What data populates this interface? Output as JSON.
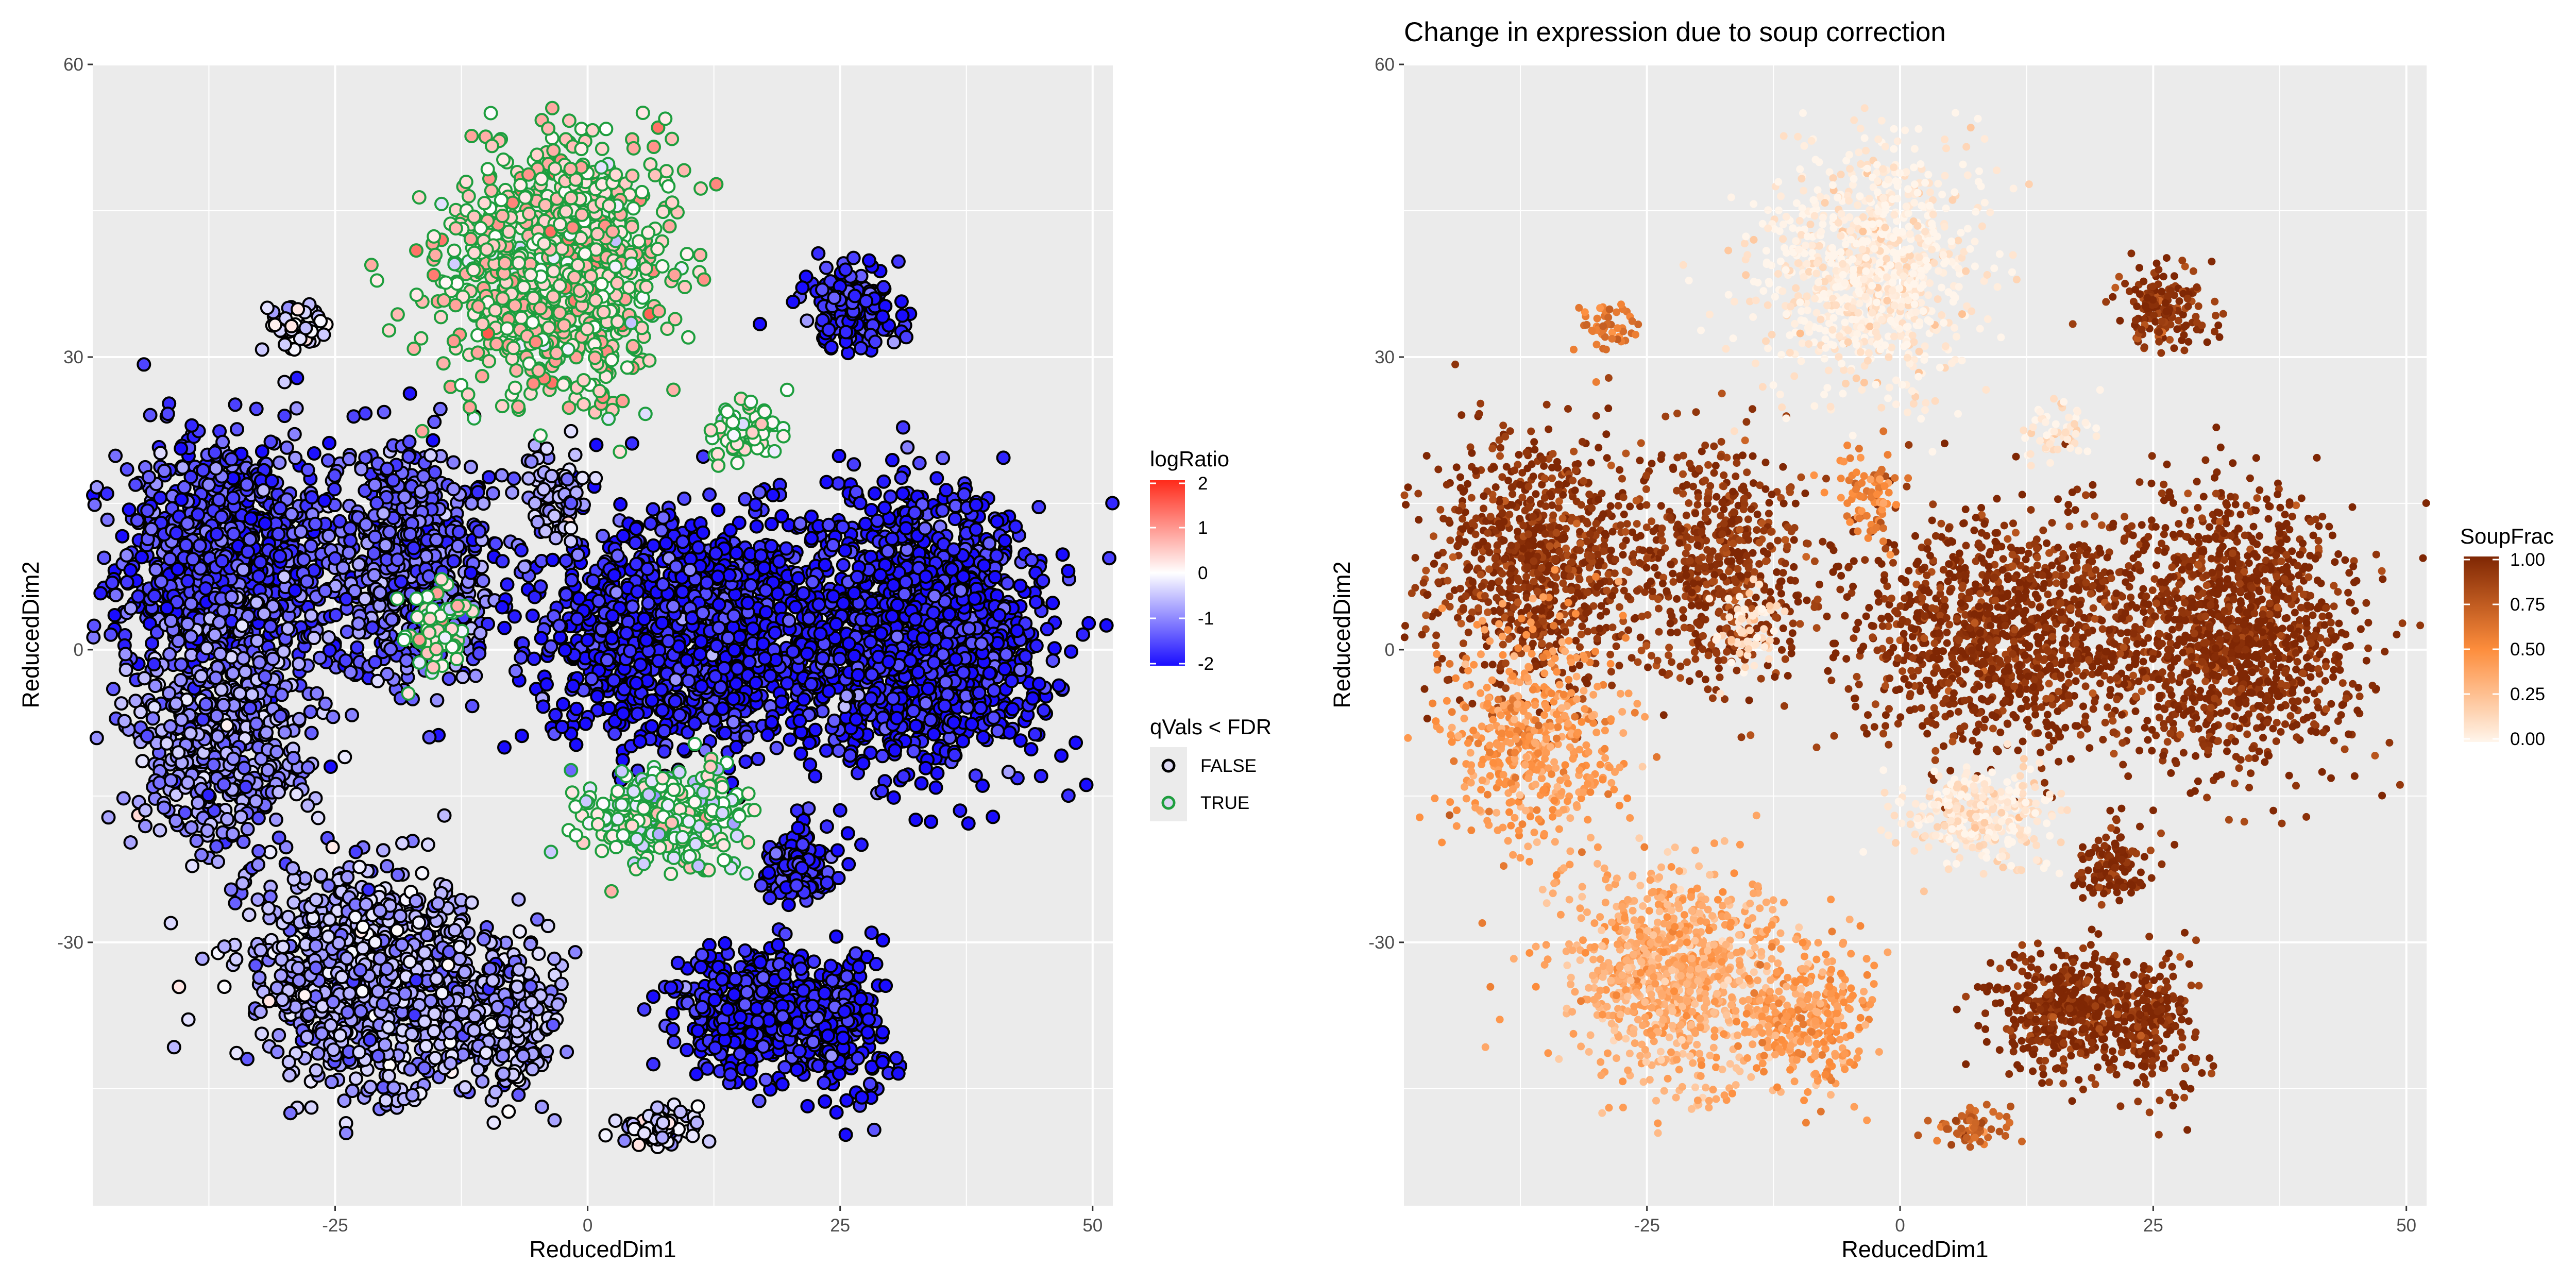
{
  "chart_data": [
    {
      "type": "scatter",
      "title": "",
      "xlabel": "ReducedDim1",
      "ylabel": "ReducedDim2",
      "xlim": [
        -49,
        52
      ],
      "ylim": [
        -57,
        60
      ],
      "xticks": [
        -25,
        0,
        25,
        50
      ],
      "yticks": [
        -30,
        0,
        30,
        60
      ],
      "xtick_labels": [
        "-25",
        "0",
        "25",
        "50"
      ],
      "ytick_labels": [
        "-30",
        "0",
        "30",
        "60"
      ],
      "grid": true,
      "legend_position": "right",
      "color_legend": {
        "title": "logRatio",
        "range": [
          -2,
          2
        ],
        "ticks": [
          "2",
          "1",
          "0",
          "-1",
          "-2"
        ],
        "colors": {
          "low": "#1a0dff",
          "mid": "#ffffff",
          "high": "#ff2a1a"
        }
      },
      "stroke_legend": {
        "title": "qVals < FDR",
        "entries": [
          {
            "label": "FALSE",
            "color": "#000000"
          },
          {
            "label": "TRUE",
            "color": "#1e9e3e"
          }
        ]
      },
      "clusters": [
        {
          "cx": -36,
          "cy": 9,
          "sx": 7,
          "sy": 9,
          "n": 900,
          "logratio": -1.5,
          "significant": false
        },
        {
          "cx": -18,
          "cy": 9,
          "sx": 6,
          "sy": 8,
          "n": 600,
          "logratio": -1.3,
          "significant": false
        },
        {
          "cx": -36,
          "cy": -10,
          "sx": 6,
          "sy": 8,
          "n": 500,
          "logratio": -0.9,
          "significant": false
        },
        {
          "cx": -22,
          "cy": -33,
          "sx": 7,
          "sy": 7,
          "n": 900,
          "logratio": -0.7,
          "significant": false
        },
        {
          "cx": -9,
          "cy": -38,
          "sx": 4,
          "sy": 5,
          "n": 300,
          "logratio": -0.7,
          "significant": false
        },
        {
          "cx": 10,
          "cy": 2,
          "sx": 10,
          "sy": 8,
          "n": 1200,
          "logratio": -1.9,
          "significant": false
        },
        {
          "cx": 33,
          "cy": 2,
          "sx": 8,
          "sy": 9,
          "n": 1300,
          "logratio": -1.9,
          "significant": false
        },
        {
          "cx": 17,
          "cy": -37,
          "sx": 5,
          "sy": 4,
          "n": 450,
          "logratio": -1.9,
          "significant": false
        },
        {
          "cx": 25,
          "cy": -38,
          "sx": 3,
          "sy": 5,
          "n": 200,
          "logratio": -1.9,
          "significant": false
        },
        {
          "cx": 21,
          "cy": -22,
          "sx": 2.5,
          "sy": 2,
          "n": 120,
          "logratio": -1.8,
          "significant": false
        },
        {
          "cx": 26,
          "cy": 35,
          "sx": 3,
          "sy": 3,
          "n": 160,
          "logratio": -1.8,
          "significant": false
        },
        {
          "cx": -3,
          "cy": 16,
          "sx": 2,
          "sy": 3,
          "n": 80,
          "logratio": -0.6,
          "significant": false
        },
        {
          "cx": -3,
          "cy": 39,
          "sx": 7,
          "sy": 8,
          "n": 1000,
          "logratio": 0.5,
          "significant": true
        },
        {
          "cx": 8,
          "cy": -17,
          "sx": 5,
          "sy": 3,
          "n": 350,
          "logratio": 0.0,
          "significant": true
        },
        {
          "cx": 15,
          "cy": 22,
          "sx": 3,
          "sy": 2,
          "n": 60,
          "logratio": 0.2,
          "significant": true
        },
        {
          "cx": -15,
          "cy": 2,
          "sx": 2,
          "sy": 3,
          "n": 60,
          "logratio": 0.2,
          "significant": true
        },
        {
          "cx": -29,
          "cy": 33,
          "sx": 2,
          "sy": 2,
          "n": 50,
          "logratio": -0.3,
          "significant": false
        },
        {
          "cx": 7,
          "cy": -49,
          "sx": 2.5,
          "sy": 1.5,
          "n": 60,
          "logratio": -0.4,
          "significant": false
        }
      ]
    },
    {
      "type": "scatter",
      "title": "Change in expression due to soup correction",
      "xlabel": "ReducedDim1",
      "ylabel": "ReducedDim2",
      "xlim": [
        -49,
        52
      ],
      "ylim": [
        -57,
        60
      ],
      "xticks": [
        -25,
        0,
        25,
        50
      ],
      "yticks": [
        -30,
        0,
        30,
        60
      ],
      "xtick_labels": [
        "-25",
        "0",
        "25",
        "50"
      ],
      "ytick_labels": [
        "-30",
        "0",
        "30",
        "60"
      ],
      "grid": true,
      "legend_position": "right",
      "color_legend": {
        "title": "SoupFrac",
        "range": [
          0,
          1
        ],
        "ticks": [
          "1.00",
          "0.75",
          "0.50",
          "0.25",
          "0.00"
        ],
        "colors": {
          "low": "#fff5eb",
          "mid": "#fd8d3c",
          "high": "#7f2704"
        }
      },
      "clusters": [
        {
          "cx": -36,
          "cy": 9,
          "sx": 7,
          "sy": 9,
          "n": 900,
          "soupfrac": 0.95
        },
        {
          "cx": -18,
          "cy": 9,
          "sx": 6,
          "sy": 8,
          "n": 600,
          "soupfrac": 0.93
        },
        {
          "cx": -36,
          "cy": -10,
          "sx": 6,
          "sy": 8,
          "n": 500,
          "soupfrac": 0.45
        },
        {
          "cx": -22,
          "cy": -33,
          "sx": 7,
          "sy": 7,
          "n": 900,
          "soupfrac": 0.35
        },
        {
          "cx": -9,
          "cy": -38,
          "sx": 4,
          "sy": 5,
          "n": 300,
          "soupfrac": 0.45
        },
        {
          "cx": 10,
          "cy": 2,
          "sx": 10,
          "sy": 8,
          "n": 1200,
          "soupfrac": 0.97
        },
        {
          "cx": 33,
          "cy": 2,
          "sx": 8,
          "sy": 9,
          "n": 1300,
          "soupfrac": 0.98
        },
        {
          "cx": 17,
          "cy": -37,
          "sx": 5,
          "sy": 4,
          "n": 450,
          "soupfrac": 0.98
        },
        {
          "cx": 25,
          "cy": -38,
          "sx": 3,
          "sy": 5,
          "n": 200,
          "soupfrac": 0.98
        },
        {
          "cx": 21,
          "cy": -22,
          "sx": 2.5,
          "sy": 2,
          "n": 120,
          "soupfrac": 0.97
        },
        {
          "cx": 26,
          "cy": 35,
          "sx": 3,
          "sy": 3,
          "n": 160,
          "soupfrac": 0.95
        },
        {
          "cx": -3,
          "cy": 16,
          "sx": 2,
          "sy": 3,
          "n": 80,
          "soupfrac": 0.55
        },
        {
          "cx": -3,
          "cy": 39,
          "sx": 7,
          "sy": 8,
          "n": 1000,
          "soupfrac": 0.03
        },
        {
          "cx": 8,
          "cy": -17,
          "sx": 5,
          "sy": 3,
          "n": 350,
          "soupfrac": 0.06
        },
        {
          "cx": 15,
          "cy": 22,
          "sx": 3,
          "sy": 2,
          "n": 60,
          "soupfrac": 0.06
        },
        {
          "cx": -15,
          "cy": 2,
          "sx": 2,
          "sy": 3,
          "n": 60,
          "soupfrac": 0.08
        },
        {
          "cx": -29,
          "cy": 33,
          "sx": 2,
          "sy": 2,
          "n": 50,
          "soupfrac": 0.6
        },
        {
          "cx": 7,
          "cy": -49,
          "sx": 2.5,
          "sy": 1.5,
          "n": 60,
          "soupfrac": 0.7
        }
      ]
    }
  ]
}
